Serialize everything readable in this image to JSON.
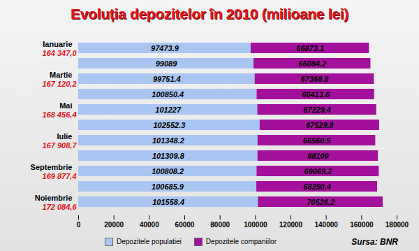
{
  "chart_data": {
    "type": "bar",
    "orientation": "horizontal",
    "stacked": true,
    "data_labels": true,
    "grid": false,
    "legend": "bottom",
    "title": "Evoluția depozitelor în 2010 (milioane lei)",
    "source": "Sursa: BNR",
    "categories": [
      "Ianuarie",
      null,
      "Martie",
      null,
      "Mai",
      null,
      "Iulie",
      null,
      "Septembrie",
      null,
      "Noiembrie"
    ],
    "total_labels": [
      "164 347,0",
      null,
      "167 120,2",
      null,
      "168 456,4",
      null,
      "167 908,7",
      null,
      "169 877,4",
      null,
      "172 084,6"
    ],
    "series": [
      {
        "name": "Depozitele populatiei",
        "color": "#a9c5f2",
        "values": [
          97473.9,
          99089,
          99751.4,
          100850.4,
          101227,
          102552.3,
          101348.2,
          101309.8,
          100808.2,
          100685.9,
          101558.4
        ]
      },
      {
        "name": "Depozitele companiilor",
        "color": "#a3109c",
        "values": [
          66873.1,
          66084.2,
          67368.8,
          66413.6,
          67229.4,
          67529.8,
          66560.5,
          68109,
          69069.2,
          68250.4,
          70526.2
        ]
      }
    ],
    "xlim": [
      0,
      180000
    ],
    "xticks": [
      0,
      20000,
      40000,
      60000,
      80000,
      100000,
      120000,
      140000,
      160000,
      180000
    ]
  }
}
